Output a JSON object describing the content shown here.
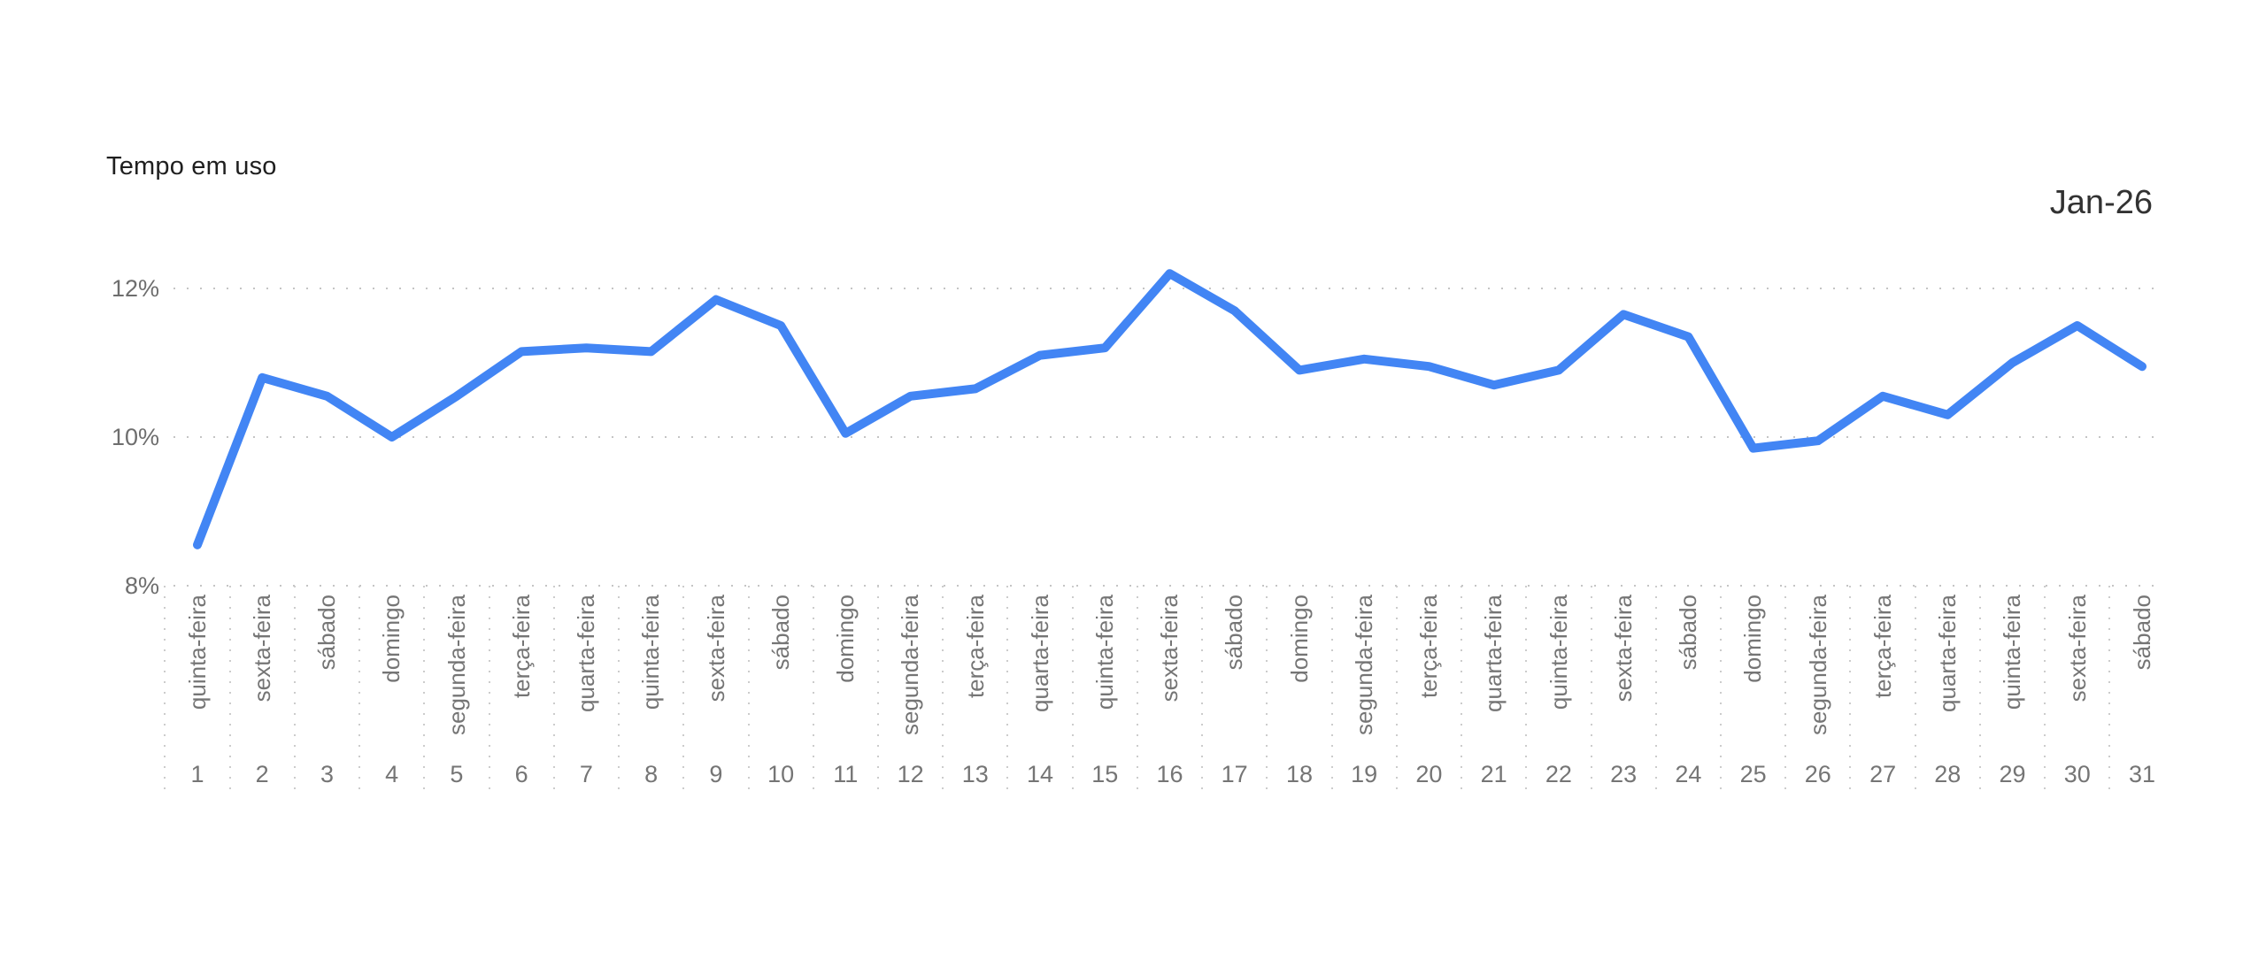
{
  "chart_data": {
    "type": "line",
    "title": "Tempo em uso",
    "period_label": "Jan-26",
    "x": [
      1,
      2,
      3,
      4,
      5,
      6,
      7,
      8,
      9,
      10,
      11,
      12,
      13,
      14,
      15,
      16,
      17,
      18,
      19,
      20,
      21,
      22,
      23,
      24,
      25,
      26,
      27,
      28,
      29,
      30,
      31
    ],
    "x_weekdays": [
      "quinta-feira",
      "sexta-feira",
      "sábado",
      "domingo",
      "segunda-feira",
      "terça-feira",
      "quarta-feira",
      "quinta-feira",
      "sexta-feira",
      "sábado",
      "domingo",
      "segunda-feira",
      "terça-feira",
      "quarta-feira",
      "quinta-feira",
      "sexta-feira",
      "sábado",
      "domingo",
      "segunda-feira",
      "terça-feira",
      "quarta-feira",
      "quinta-feira",
      "sexta-feira",
      "sábado",
      "domingo",
      "segunda-feira",
      "terça-feira",
      "quarta-feira",
      "quinta-feira",
      "sexta-feira",
      "sábado"
    ],
    "series": [
      {
        "name": "Tempo em uso",
        "unit": "%",
        "color": "#4285F4",
        "values": [
          8.55,
          10.8,
          10.55,
          10.0,
          10.55,
          11.15,
          11.2,
          11.15,
          11.85,
          11.5,
          10.05,
          10.55,
          10.65,
          11.1,
          11.2,
          12.2,
          11.7,
          10.9,
          11.05,
          10.95,
          10.7,
          10.9,
          11.65,
          11.35,
          9.85,
          9.95,
          10.55,
          10.3,
          11.0,
          11.5,
          10.95
        ]
      }
    ],
    "y_axis": {
      "min": 8,
      "max": 12,
      "ticks": [
        12,
        10,
        8
      ],
      "tick_labels": [
        "12%",
        "10%",
        "8%"
      ],
      "unit": "%"
    },
    "xlabel": "",
    "ylabel": "",
    "legend": "none",
    "grid": {
      "horizontal": "dotted",
      "vertical": "dotted separators below axis between day columns"
    },
    "colors": {
      "line": "#4285F4",
      "title_text": "#1F1F1F",
      "period_text": "#323232",
      "axis_text": "#757575",
      "y_tick_text": "#6E6E6E",
      "gridline": "#C4C4C4",
      "background": "#FFFFFF"
    }
  }
}
